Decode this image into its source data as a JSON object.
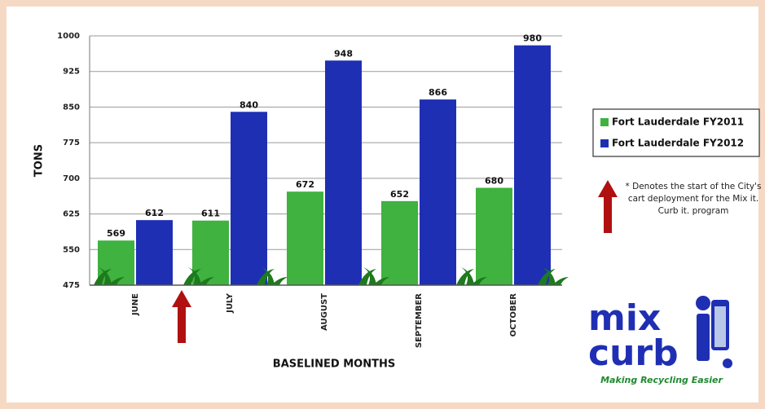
{
  "chart_data": {
    "type": "bar",
    "categories": [
      "JUNE",
      "JULY",
      "AUGUST",
      "SEPTEMBER",
      "OCTOBER"
    ],
    "series": [
      {
        "name": "Fort Lauderdale FY2011",
        "color": "#3fb23f",
        "values": [
          569,
          611,
          672,
          652,
          680
        ]
      },
      {
        "name": "Fort Lauderdale FY2012",
        "color": "#1f2fb4",
        "values": [
          612,
          840,
          948,
          866,
          980
        ]
      }
    ],
    "ylim": [
      475,
      1000
    ],
    "yticks": [
      475,
      550,
      625,
      700,
      775,
      850,
      925,
      1000
    ],
    "y_label": "TONS",
    "x_label": "BASELINED MONTHS",
    "annotation": "* Denotes the start of the City's cart deployment for the Mix it. Curb it. program",
    "logo": {
      "word1": "mix",
      "word2": "curb",
      "tagline": "Making Recycling Easier"
    },
    "legend": "right"
  }
}
